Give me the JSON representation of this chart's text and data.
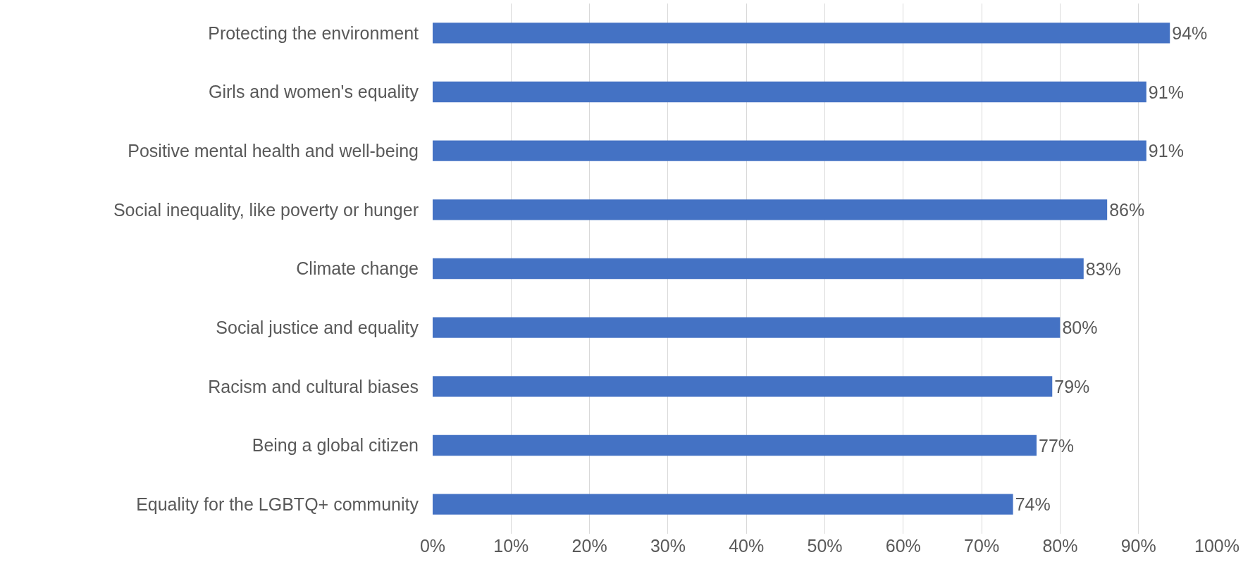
{
  "chart_data": {
    "type": "bar",
    "orientation": "horizontal",
    "categories": [
      "Protecting the environment",
      "Girls and women's equality",
      "Positive mental health and well-being",
      "Social inequality, like poverty or hunger",
      "Climate change",
      "Social justice and equality",
      "Racism and cultural biases",
      "Being a global citizen",
      "Equality for the LGBTQ+ community"
    ],
    "values": [
      94,
      91,
      91,
      86,
      83,
      80,
      79,
      77,
      74
    ],
    "value_labels": [
      "94%",
      "91%",
      "91%",
      "86%",
      "83%",
      "80%",
      "79%",
      "77%",
      "74%"
    ],
    "color": "#4472c4",
    "xlim": [
      0,
      100
    ],
    "xticks": [
      {
        "value": 0,
        "label": "0%"
      },
      {
        "value": 10,
        "label": "10%"
      },
      {
        "value": 20,
        "label": "20%"
      },
      {
        "value": 30,
        "label": "30%"
      },
      {
        "value": 40,
        "label": "40%"
      },
      {
        "value": 50,
        "label": "50%"
      },
      {
        "value": 60,
        "label": "60%"
      },
      {
        "value": 70,
        "label": "70%"
      },
      {
        "value": 80,
        "label": "80%"
      },
      {
        "value": 90,
        "label": "90%"
      },
      {
        "value": 100,
        "label": "100%"
      }
    ],
    "grid": "x",
    "legend": false
  }
}
